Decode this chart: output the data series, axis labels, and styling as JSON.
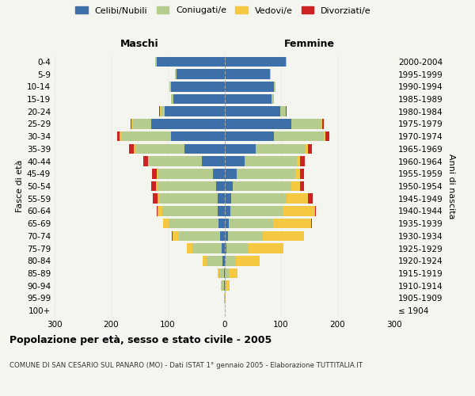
{
  "age_groups": [
    "100+",
    "95-99",
    "90-94",
    "85-89",
    "80-84",
    "75-79",
    "70-74",
    "65-69",
    "60-64",
    "55-59",
    "50-54",
    "45-49",
    "40-44",
    "35-39",
    "30-34",
    "25-29",
    "20-24",
    "15-19",
    "10-14",
    "5-9",
    "0-4"
  ],
  "birth_years": [
    "≤ 1904",
    "1905-1909",
    "1910-1914",
    "1915-1919",
    "1920-1924",
    "1925-1929",
    "1930-1934",
    "1935-1939",
    "1940-1944",
    "1945-1949",
    "1950-1954",
    "1955-1959",
    "1960-1964",
    "1965-1969",
    "1970-1974",
    "1975-1979",
    "1980-1984",
    "1985-1989",
    "1990-1994",
    "1995-1999",
    "2000-2004"
  ],
  "males_celibi": [
    0,
    0,
    1,
    1,
    3,
    5,
    8,
    10,
    12,
    12,
    15,
    20,
    40,
    70,
    95,
    130,
    105,
    90,
    95,
    85,
    120
  ],
  "males_coniugati": [
    0,
    1,
    4,
    8,
    28,
    52,
    72,
    88,
    98,
    102,
    103,
    98,
    93,
    88,
    88,
    33,
    8,
    4,
    2,
    2,
    2
  ],
  "males_vedovi": [
    0,
    0,
    1,
    3,
    8,
    10,
    12,
    10,
    8,
    4,
    3,
    2,
    2,
    2,
    2,
    1,
    1,
    0,
    0,
    0,
    0
  ],
  "males_divorziati": [
    0,
    0,
    0,
    0,
    0,
    0,
    1,
    1,
    1,
    9,
    8,
    8,
    8,
    8,
    5,
    2,
    1,
    0,
    0,
    0,
    0
  ],
  "females_nubili": [
    0,
    0,
    1,
    1,
    2,
    4,
    6,
    8,
    10,
    12,
    15,
    22,
    35,
    55,
    88,
    118,
    98,
    83,
    88,
    80,
    108
  ],
  "females_coniugate": [
    0,
    1,
    3,
    6,
    18,
    38,
    62,
    78,
    93,
    98,
    103,
    103,
    93,
    88,
    88,
    53,
    10,
    4,
    2,
    2,
    2
  ],
  "females_vedove": [
    0,
    1,
    5,
    16,
    42,
    62,
    72,
    67,
    57,
    37,
    15,
    8,
    6,
    4,
    3,
    2,
    1,
    0,
    0,
    0,
    0
  ],
  "females_divorziate": [
    0,
    0,
    0,
    0,
    0,
    0,
    1,
    1,
    2,
    9,
    8,
    8,
    8,
    8,
    6,
    2,
    1,
    0,
    0,
    0,
    0
  ],
  "color_celibi": "#3d6fa8",
  "color_coniugati": "#b5cc8e",
  "color_vedovi": "#f5c842",
  "color_divorziati": "#cc2222",
  "xlim": 300,
  "xticks": [
    -300,
    -200,
    -100,
    0,
    100,
    200,
    300
  ],
  "title": "Popolazione per età, sesso e stato civile - 2005",
  "subtitle": "COMUNE DI SAN CESARIO SUL PANARO (MO) - Dati ISTAT 1° gennaio 2005 - Elaborazione TUTTITALIA.IT",
  "ylabel_left": "Fasce di età",
  "ylabel_right": "Anni di nascita",
  "label_maschi": "Maschi",
  "label_femmine": "Femmine",
  "legend_labels": [
    "Celibi/Nubili",
    "Coniugati/e",
    "Vedovi/e",
    "Divorziati/e"
  ],
  "bg_color": "#f5f5f0",
  "grid_color": "#cccccc"
}
